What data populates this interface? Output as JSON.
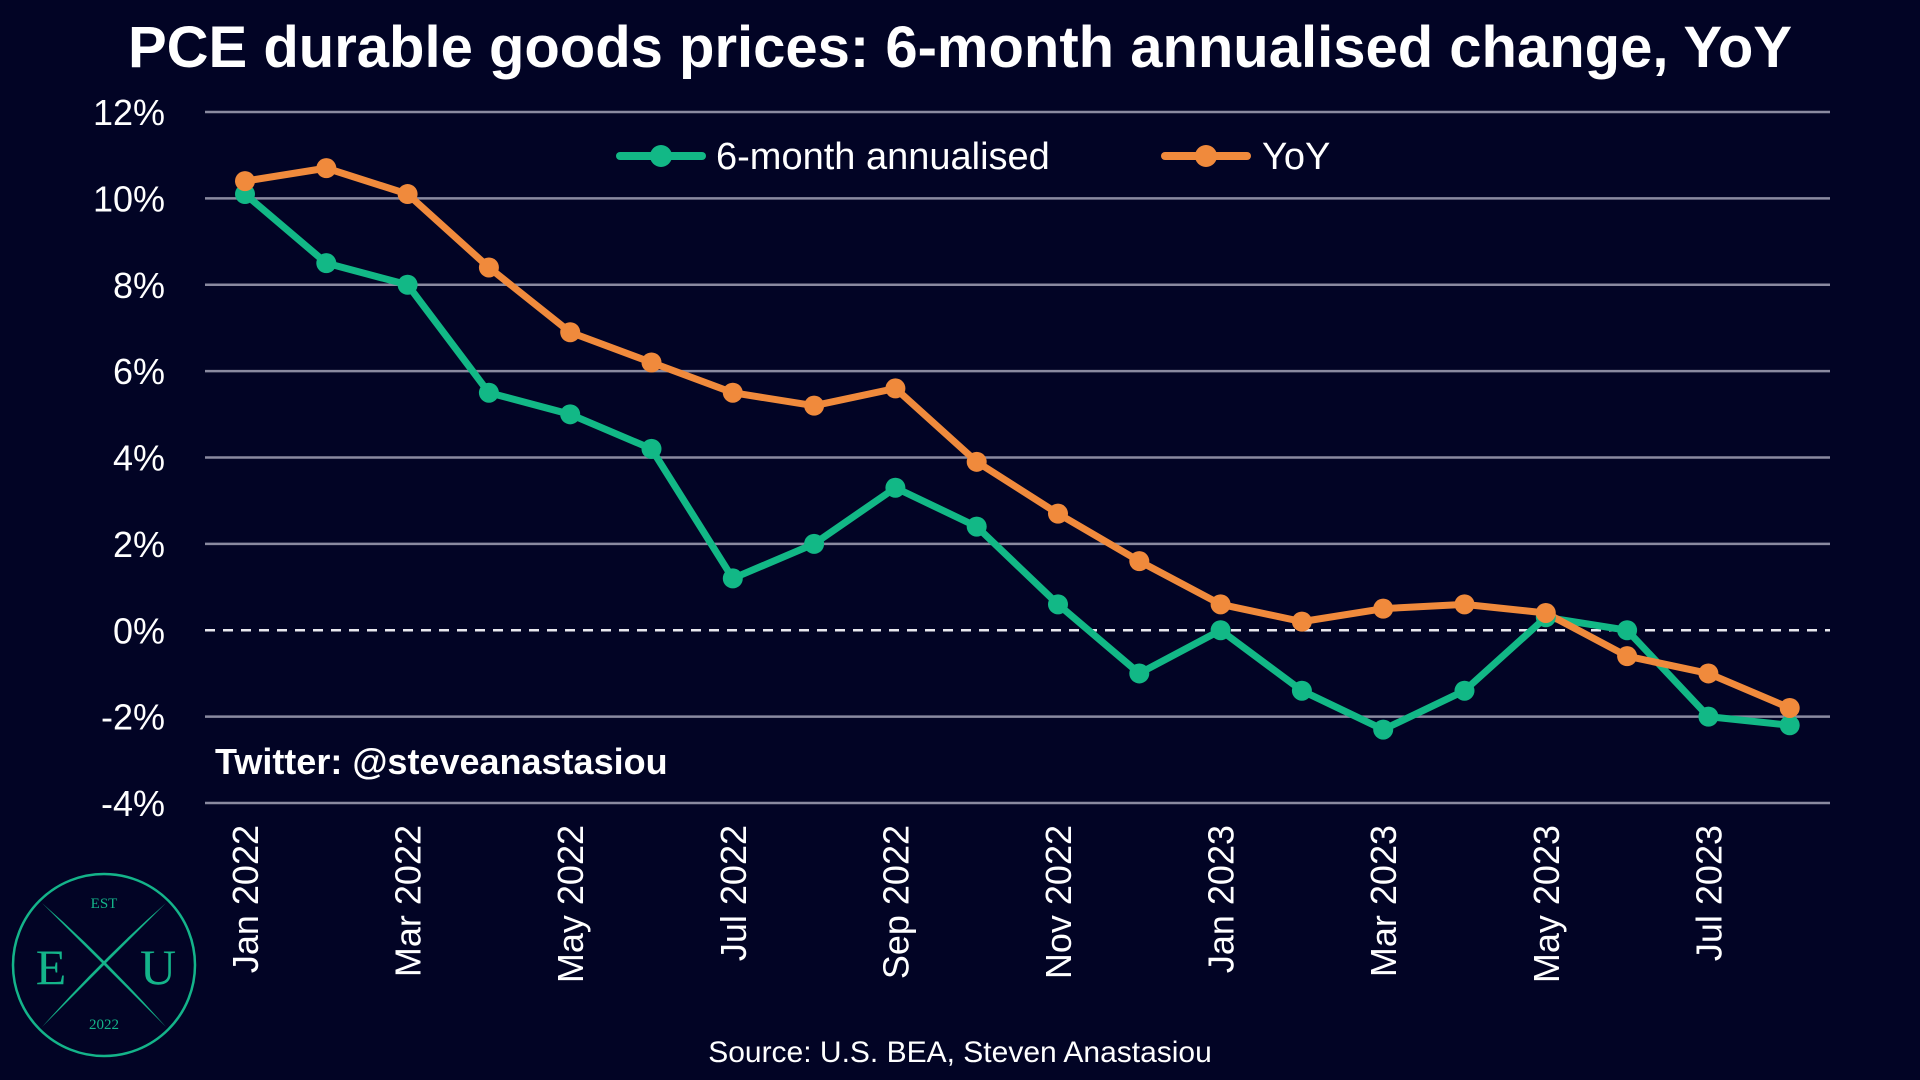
{
  "chart_data": {
    "type": "line",
    "title": "PCE durable goods prices: 6-month annualised change, YoY",
    "xlabel": "",
    "ylabel": "",
    "x": [
      "Jan 2022",
      "Feb 2022",
      "Mar 2022",
      "Apr 2022",
      "May 2022",
      "Jun 2022",
      "Jul 2022",
      "Aug 2022",
      "Sep 2022",
      "Oct 2022",
      "Nov 2022",
      "Dec 2022",
      "Jan 2023",
      "Feb 2023",
      "Mar 2023",
      "Apr 2023",
      "May 2023",
      "Jun 2023",
      "Jul 2023",
      "Aug 2023"
    ],
    "x_tick_labels": [
      "Jan 2022",
      "Mar 2022",
      "May 2022",
      "Jul 2022",
      "Sep 2022",
      "Nov 2022",
      "Jan 2023",
      "Mar 2023",
      "May 2023",
      "Jul 2023"
    ],
    "y_ticks": [
      -4,
      -2,
      0,
      2,
      4,
      6,
      8,
      10,
      12
    ],
    "y_tick_labels": [
      "-4%",
      "-2%",
      "0%",
      "2%",
      "4%",
      "6%",
      "8%",
      "10%",
      "12%"
    ],
    "ylim": [
      -4,
      12
    ],
    "grid": true,
    "zero_line": "dashed",
    "legend_position": "top-center",
    "series": [
      {
        "name": "6-month annualised",
        "color": "#12b886",
        "values": [
          10.1,
          8.5,
          8.0,
          5.5,
          5.0,
          4.2,
          1.2,
          2.0,
          3.3,
          2.4,
          0.6,
          -1.0,
          0.0,
          -1.4,
          -2.3,
          -1.4,
          0.3,
          0.0,
          -2.0,
          -2.2
        ]
      },
      {
        "name": "YoY",
        "color": "#f08a3c",
        "values": [
          10.4,
          10.7,
          10.1,
          8.4,
          6.9,
          6.2,
          5.5,
          5.2,
          5.6,
          3.9,
          2.7,
          1.6,
          0.6,
          0.2,
          0.5,
          0.6,
          0.4,
          -0.6,
          -1.0,
          -1.8
        ]
      }
    ]
  },
  "annotation": "Twitter: @steveanastasiou",
  "source": "Source: U.S. BEA, Steven Anastasiou",
  "logo": {
    "top": "EST",
    "left": "E",
    "center": "X",
    "right": "U",
    "bottom": "2022",
    "color": "#14b48a"
  }
}
